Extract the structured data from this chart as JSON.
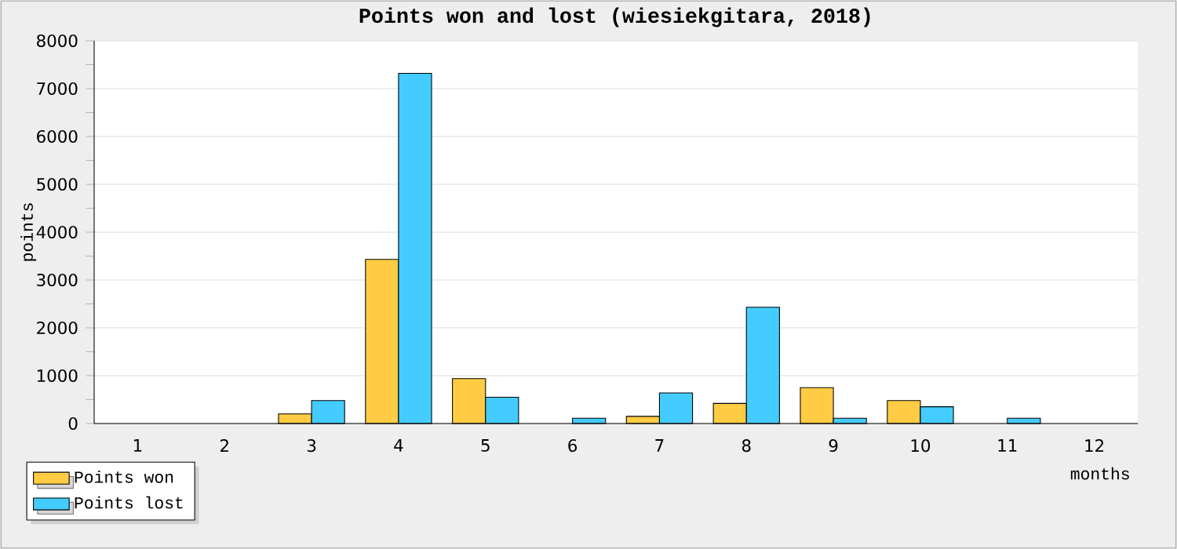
{
  "chart_data": {
    "type": "bar",
    "title": "Points won and lost (wiesiekgitara, 2018)",
    "xlabel": "months",
    "ylabel": "points",
    "categories": [
      "1",
      "2",
      "3",
      "4",
      "5",
      "6",
      "7",
      "8",
      "9",
      "10",
      "11",
      "12"
    ],
    "series": [
      {
        "name": "Points won",
        "color": "#ffcc44",
        "values": [
          null,
          null,
          200,
          3430,
          940,
          null,
          150,
          420,
          750,
          480,
          null,
          null
        ]
      },
      {
        "name": "Points lost",
        "color": "#44ccff",
        "values": [
          null,
          null,
          480,
          7320,
          550,
          110,
          640,
          2430,
          110,
          350,
          110,
          null
        ]
      }
    ],
    "ylim": [
      0,
      8000
    ],
    "yticks": [
      0,
      1000,
      2000,
      3000,
      4000,
      5000,
      6000,
      7000,
      8000
    ],
    "grid": "y",
    "legend": "bottom left"
  }
}
